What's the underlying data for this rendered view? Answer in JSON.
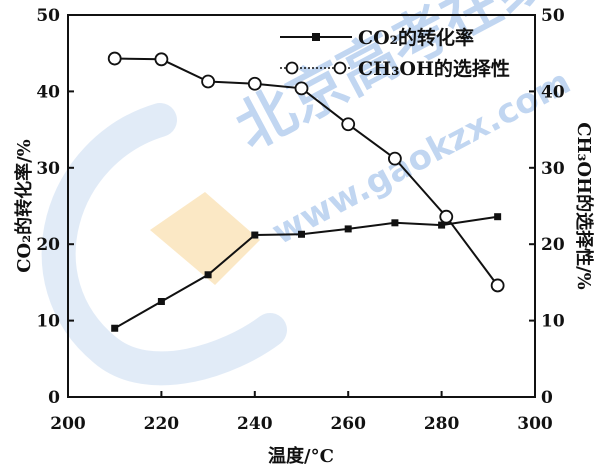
{
  "watermark": {
    "brand": "北京高考在线",
    "url": "www.gaokzx.com"
  },
  "chart_data": {
    "type": "line",
    "title": "",
    "xlabel": "温度/°C",
    "ylabel_left": "CO₂的转化率/%",
    "ylabel_right": "CH₃OH的选择性/%",
    "xlim": [
      200,
      300
    ],
    "ylim_left": [
      0,
      50
    ],
    "ylim_right": [
      0,
      50
    ],
    "x_ticks": [
      "200",
      "220",
      "240",
      "260",
      "280",
      "300"
    ],
    "y_ticks_left": [
      "0",
      "10",
      "20",
      "30",
      "40",
      "50"
    ],
    "y_ticks_right": [
      "0",
      "10",
      "20",
      "30",
      "40",
      "50"
    ],
    "grid": false,
    "legend_position": "top-right",
    "series": [
      {
        "name": "CO₂的转化率",
        "axis": "left",
        "marker": "filled-square",
        "x": [
          210,
          220,
          230,
          240,
          250,
          260,
          270,
          280,
          292
        ],
        "y": [
          9.0,
          12.5,
          16.0,
          21.2,
          21.3,
          22.0,
          22.8,
          22.5,
          23.6
        ]
      },
      {
        "name": "CH₃OH的选择性",
        "axis": "right",
        "marker": "open-circle",
        "x": [
          210,
          220,
          230,
          240,
          250,
          260,
          270,
          281,
          292
        ],
        "y": [
          44.3,
          44.2,
          41.3,
          41.0,
          40.4,
          35.7,
          31.2,
          23.6,
          14.6
        ]
      }
    ]
  }
}
